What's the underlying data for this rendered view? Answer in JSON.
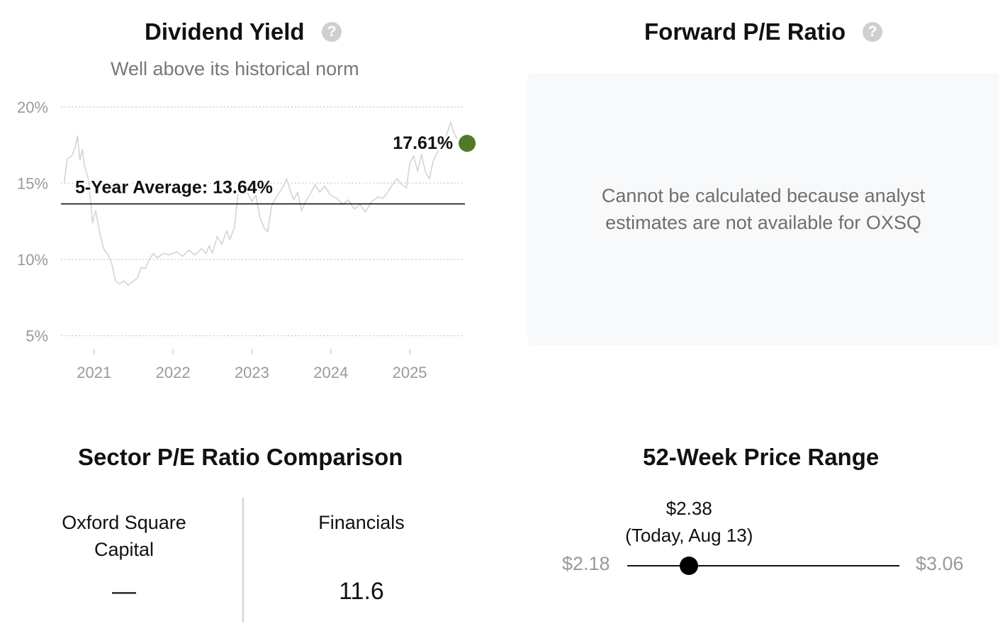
{
  "dividend_yield": {
    "title": "Dividend Yield",
    "subtitle": "Well above its historical norm",
    "help_icon": "question-circle-icon"
  },
  "forward_pe": {
    "title": "Forward P/E Ratio",
    "help_icon": "question-circle-icon",
    "message_line1": "Cannot be calculated because analyst",
    "message_line2": "estimates are not available for OXSQ"
  },
  "sector_pe": {
    "title": "Sector P/E Ratio Comparison",
    "company_line1": "Oxford Square",
    "company_line2": "Capital",
    "company_value": "—",
    "sector_name": "Financials",
    "sector_value": "11.6"
  },
  "price_range": {
    "title": "52-Week Price Range",
    "low_label": "$2.18",
    "high_label": "$3.06",
    "low": 2.18,
    "high": 3.06,
    "current": 2.38,
    "current_label": "$2.38",
    "current_note": "(Today, Aug 13)"
  },
  "colors": {
    "current_point": "#4f7a28",
    "history_line": "#d4d4d4",
    "average_line": "#111111",
    "range_dot": "#000000"
  },
  "chart_data": {
    "type": "line",
    "title": "Dividend Yield",
    "subtitle": "Well above its historical norm",
    "xlabel": "",
    "ylabel": "",
    "xlim": [
      2020.58,
      2025.7
    ],
    "ylim": [
      4,
      20.5
    ],
    "x_ticks": [
      2021,
      2022,
      2023,
      2024,
      2025
    ],
    "x_tick_labels": [
      "2021",
      "2022",
      "2023",
      "2024",
      "2025"
    ],
    "y_ticks": [
      5,
      10,
      15,
      20
    ],
    "y_tick_labels": [
      "5%",
      "10%",
      "15%",
      "20%"
    ],
    "grid": "horizontal dotted",
    "average": {
      "label": "5-Year Average: 13.64%",
      "value": 13.64
    },
    "current": {
      "label": "17.61%",
      "x": 2025.62,
      "value": 17.61
    },
    "series": [
      {
        "x": [
          2020.62,
          2020.66,
          2020.72,
          2020.76,
          2020.79,
          2020.82,
          2020.85,
          2020.88,
          2020.93,
          2020.96,
          2020.98,
          2021.02,
          2021.08,
          2021.12,
          2021.18,
          2021.23,
          2021.27,
          2021.32,
          2021.38,
          2021.43,
          2021.48,
          2021.55,
          2021.6,
          2021.65,
          2021.7,
          2021.75,
          2021.8,
          2021.88,
          2021.95,
          2022.05,
          2022.12,
          2022.2,
          2022.28,
          2022.36,
          2022.42,
          2022.46,
          2022.5,
          2022.56,
          2022.62,
          2022.68,
          2022.72,
          2022.78,
          2022.82,
          2022.88,
          2022.94,
          2023.0,
          2023.05,
          2023.1,
          2023.15,
          2023.2,
          2023.25,
          2023.3,
          2023.35,
          2023.4,
          2023.44,
          2023.48,
          2023.53,
          2023.58,
          2023.63,
          2023.68,
          2023.74,
          2023.8,
          2023.86,
          2023.92,
          2024.0,
          2024.08,
          2024.15,
          2024.22,
          2024.3,
          2024.37,
          2024.44,
          2024.52,
          2024.6,
          2024.66,
          2024.72,
          2024.78,
          2024.84,
          2024.9,
          2024.96,
          2025.0,
          2025.05,
          2025.1,
          2025.15,
          2025.2,
          2025.25,
          2025.3,
          2025.36,
          2025.42,
          2025.47,
          2025.52,
          2025.56,
          2025.6
        ],
        "values": [
          15.0,
          16.6,
          16.8,
          17.3,
          18.1,
          16.5,
          17.2,
          16.1,
          15.2,
          13.6,
          12.4,
          13.2,
          11.5,
          10.7,
          10.3,
          9.6,
          8.6,
          8.4,
          8.6,
          8.3,
          8.5,
          8.8,
          9.5,
          9.4,
          10.0,
          10.4,
          10.1,
          10.4,
          10.3,
          10.5,
          10.2,
          10.6,
          10.3,
          10.7,
          10.4,
          10.9,
          10.4,
          11.5,
          11.0,
          11.9,
          11.3,
          12.1,
          14.2,
          14.6,
          14.4,
          13.8,
          14.2,
          12.8,
          12.1,
          11.8,
          13.5,
          14.0,
          14.4,
          14.8,
          15.3,
          14.6,
          13.9,
          14.4,
          13.2,
          13.8,
          14.3,
          14.9,
          14.4,
          14.8,
          14.2,
          14.0,
          13.6,
          13.9,
          13.3,
          13.6,
          13.1,
          13.8,
          14.1,
          14.0,
          14.4,
          14.9,
          15.3,
          14.9,
          14.7,
          16.3,
          16.8,
          15.8,
          16.9,
          15.7,
          15.3,
          16.5,
          17.1,
          17.3,
          18.2,
          19.0,
          18.3,
          17.9
        ]
      }
    ]
  }
}
